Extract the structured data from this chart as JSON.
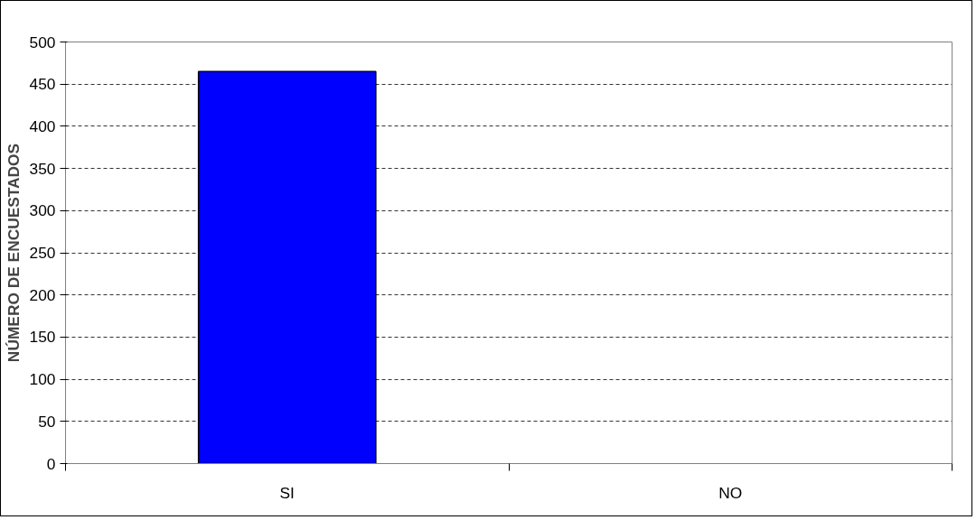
{
  "chart_data": {
    "type": "bar",
    "ylabel": "NÚMERO DE ENCUESTADOS",
    "categories": [
      "SI",
      "NO"
    ],
    "values": [
      465,
      0
    ],
    "color": "#0000ff",
    "ylim": [
      0,
      500
    ],
    "yticks": [
      0,
      50,
      100,
      150,
      200,
      250,
      300,
      350,
      400,
      450,
      500
    ],
    "grid": "y"
  }
}
